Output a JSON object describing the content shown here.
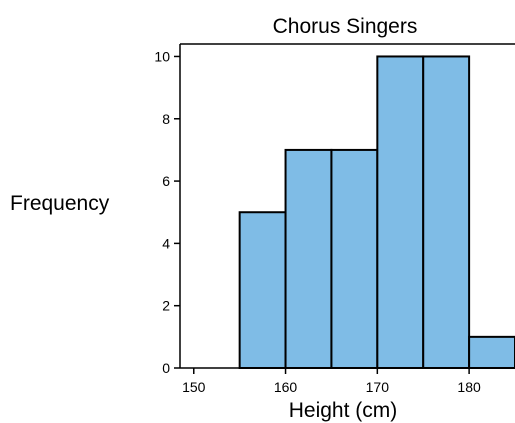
{
  "chart_data": {
    "type": "bar",
    "title": "Chorus Singers",
    "xlabel": "Height (cm)",
    "ylabel": "Frequency",
    "bins": [
      {
        "from": 150,
        "to": 155,
        "count": 0
      },
      {
        "from": 155,
        "to": 160,
        "count": 5
      },
      {
        "from": 160,
        "to": 165,
        "count": 7
      },
      {
        "from": 165,
        "to": 170,
        "count": 7
      },
      {
        "from": 170,
        "to": 175,
        "count": 10
      },
      {
        "from": 175,
        "to": 180,
        "count": 10
      },
      {
        "from": 180,
        "to": 185,
        "count": 1
      }
    ],
    "xlim": [
      148.5,
      185
    ],
    "ylim": [
      0,
      10.4
    ],
    "x_ticks": [
      150,
      160,
      170,
      180
    ],
    "y_ticks": [
      0,
      2,
      4,
      6,
      8,
      10
    ],
    "grid": false,
    "bar_color": "#7FBCE6",
    "bar_edge_color": "#000000"
  }
}
